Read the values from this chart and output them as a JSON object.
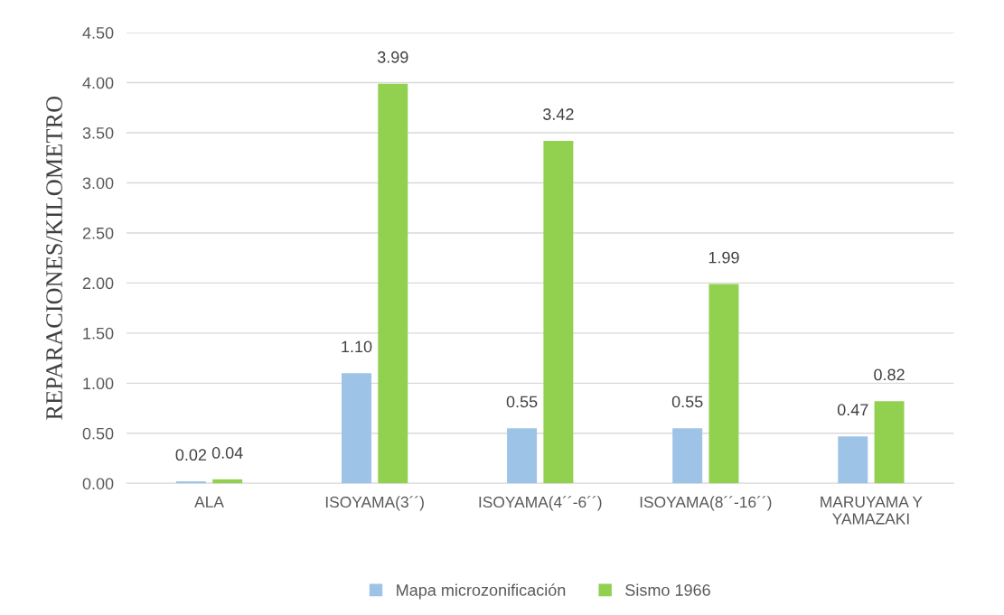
{
  "chart_data": {
    "type": "bar",
    "ylabel": "REPARACIONES/KILOMETRO",
    "categories": [
      "ALA",
      "ISOYAMA(3´´)",
      "ISOYAMA(4´´-6´´)",
      "ISOYAMA(8´´-16´´)",
      "MARUYAMA Y\nYAMAZAKI"
    ],
    "series": [
      {
        "name": "Mapa microzonificación",
        "color": "#9dc3e6",
        "values": [
          0.02,
          1.1,
          0.55,
          0.55,
          0.47
        ],
        "value_labels": [
          "0.02",
          "1.10",
          "0.55",
          "0.55",
          "0.47"
        ]
      },
      {
        "name": "Sismo 1966",
        "color": "#92d050",
        "values": [
          0.04,
          3.99,
          3.42,
          1.99,
          0.82
        ],
        "value_labels": [
          "0.04",
          "3.99",
          "3.42",
          "1.99",
          "0.82"
        ]
      }
    ],
    "ylim": [
      0,
      4.5
    ],
    "yticks": [
      {
        "value": 0,
        "label": "0.00"
      },
      {
        "value": 0.5,
        "label": "0.50"
      },
      {
        "value": 1,
        "label": "1.00"
      },
      {
        "value": 1.5,
        "label": "1.50"
      },
      {
        "value": 2,
        "label": "2.00"
      },
      {
        "value": 2.5,
        "label": "2.50"
      },
      {
        "value": 3,
        "label": "3.00"
      },
      {
        "value": 3.5,
        "label": "3.50"
      },
      {
        "value": 4,
        "label": "4.00"
      },
      {
        "value": 4.5,
        "label": "4.50"
      }
    ],
    "grid": "y",
    "legend": "bottom"
  }
}
